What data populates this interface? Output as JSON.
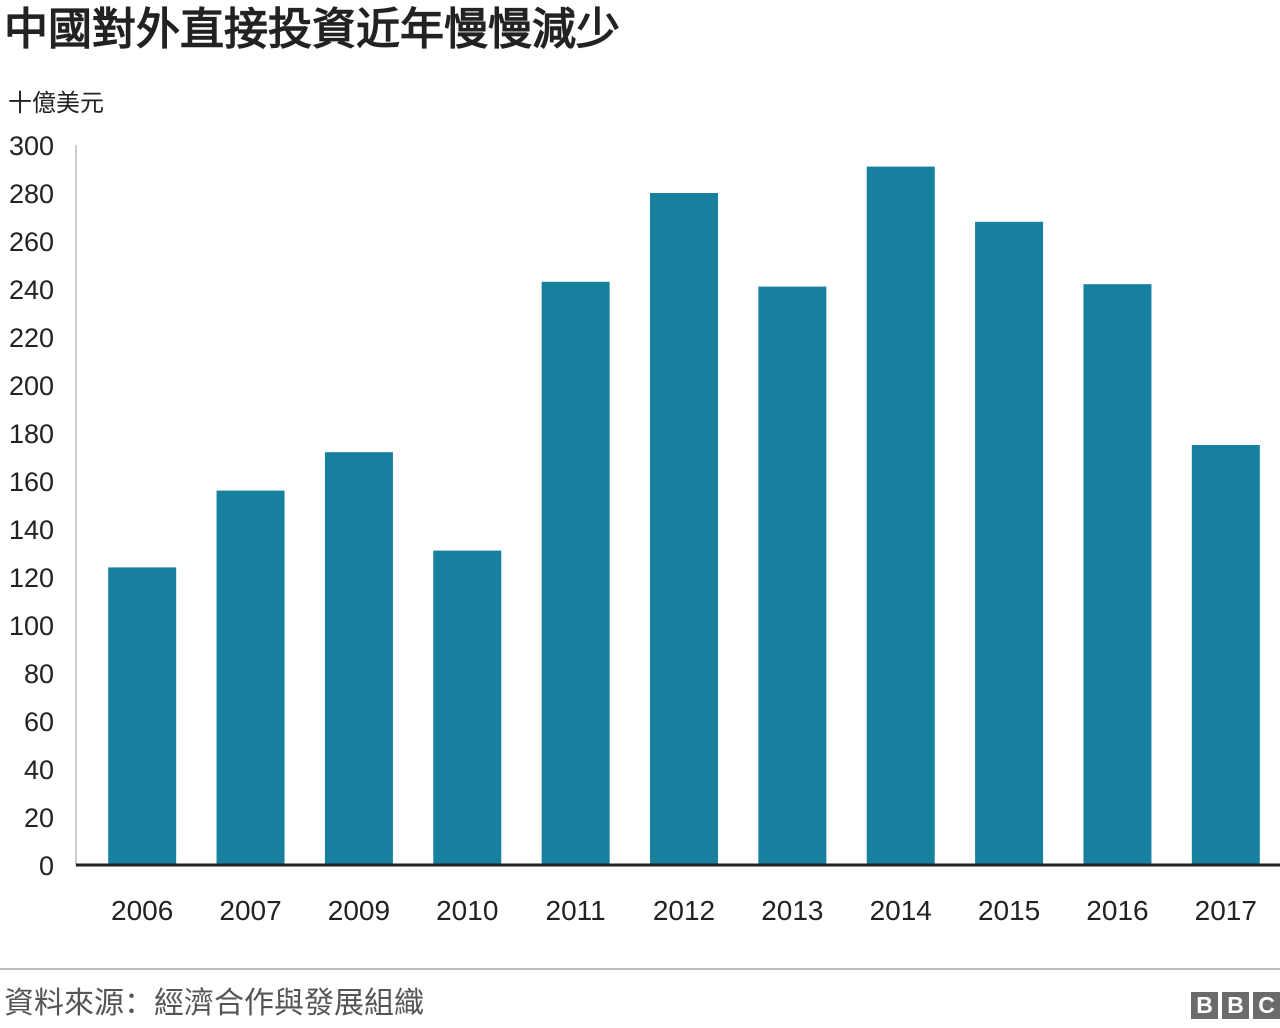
{
  "title": "中國對外直接投資近年慢慢減少",
  "source": "資料來源：經濟合作與發展組織",
  "brand": [
    "B",
    "B",
    "C"
  ],
  "colors": {
    "bar": "#17809f",
    "axis": "#222222",
    "gridline": "#d9d9d9",
    "text": "#222222"
  },
  "chart_data": {
    "type": "bar",
    "title": "中國對外直接投資近年慢慢減少",
    "ylabel": "十億美元",
    "xlabel": "",
    "categories": [
      "2006",
      "2007",
      "2009",
      "2010",
      "2011",
      "2012",
      "2013",
      "2014",
      "2015",
      "2016",
      "2017"
    ],
    "values": [
      124,
      156,
      172,
      131,
      243,
      280,
      241,
      291,
      268,
      242,
      175
    ],
    "ylim": [
      0,
      300
    ],
    "yticks": [
      0,
      20,
      40,
      60,
      80,
      100,
      120,
      140,
      160,
      180,
      200,
      220,
      240,
      260,
      280,
      300
    ],
    "grid": false,
    "legend": "none"
  }
}
